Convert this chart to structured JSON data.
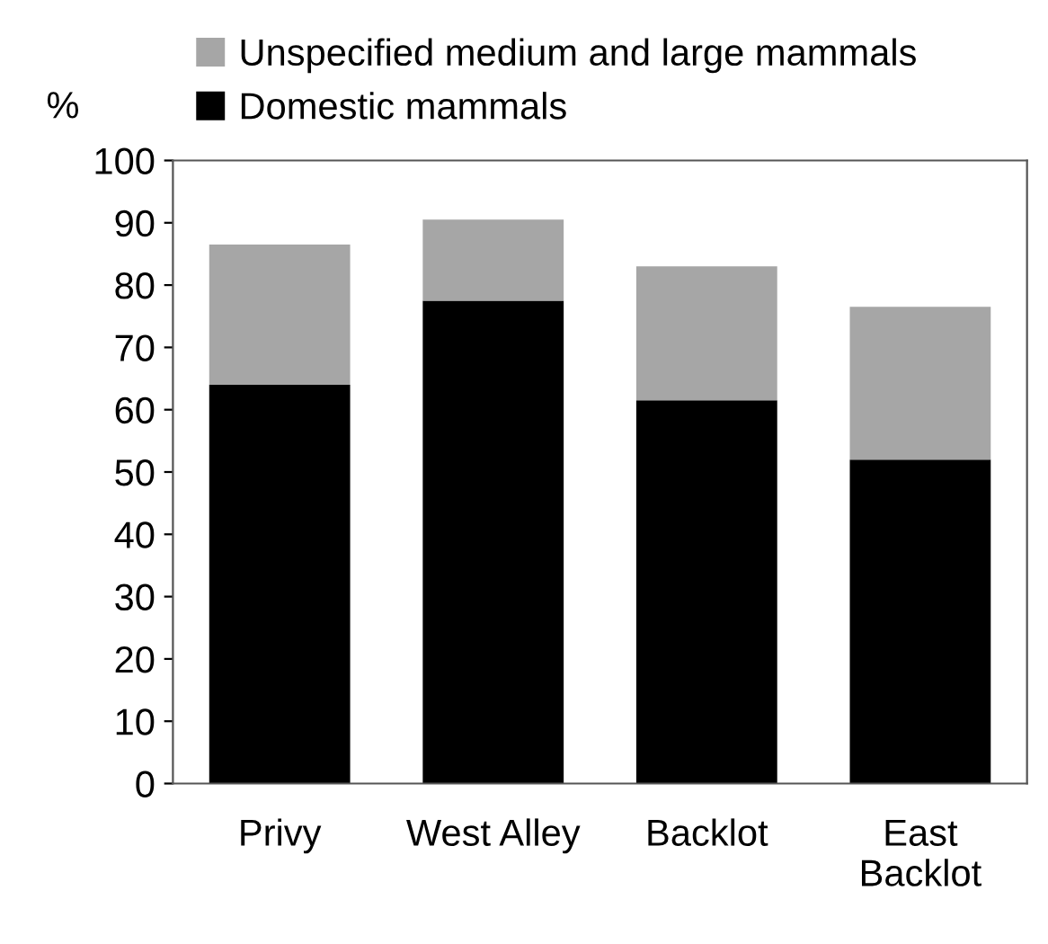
{
  "chart_data": {
    "type": "bar",
    "stacked": true,
    "ylabel": "%",
    "categories": [
      "Privy",
      "West Alley",
      "Backlot",
      "East\nBacklot"
    ],
    "series": [
      {
        "name": "Domestic mammals",
        "color": "#000000",
        "values": [
          64,
          77.5,
          61.5,
          52
        ]
      },
      {
        "name": "Unspecified medium and large mammals",
        "color": "#a6a6a6",
        "values": [
          22.5,
          13,
          21.5,
          24.5
        ]
      }
    ],
    "ylim": [
      0,
      100
    ],
    "yticks": [
      0,
      10,
      20,
      30,
      40,
      50,
      60,
      70,
      80,
      90,
      100
    ],
    "grid": false,
    "legend": "top"
  }
}
